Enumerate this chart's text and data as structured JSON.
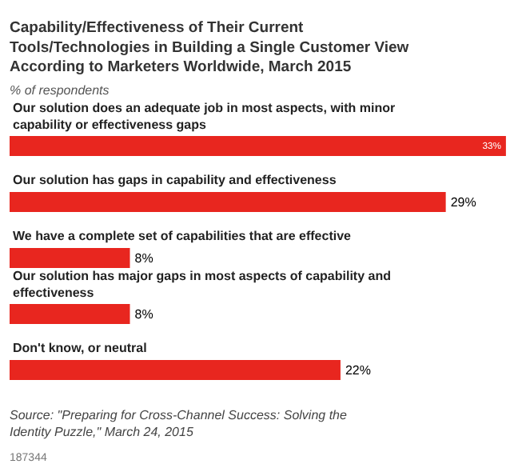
{
  "chart_data": {
    "type": "bar",
    "orientation": "horizontal",
    "title": "Capability/Effectiveness of Their Current Tools/Technologies in Building a Single Customer View According to Marketers Worldwide, March 2015",
    "subtitle": "% of respondents",
    "categories": [
      "Our solution does an adequate job in most aspects, with minor capability or effectiveness gaps",
      "Our solution has gaps in capability and effectiveness",
      "We have a complete set of capabilities that are effective",
      "Our solution has major gaps in most aspects of capability and effectiveness",
      "Don't know, or neutral"
    ],
    "values": [
      33,
      29,
      8,
      8,
      22
    ],
    "value_labels": [
      "33%",
      "29%",
      "8%",
      "8%",
      "22%"
    ],
    "color": "#e8261f",
    "annotations": [
      "Source: \"Preparing for Cross-Channel Success: Solving the Identity Puzzle,\" March 24, 2015",
      "187344"
    ]
  }
}
